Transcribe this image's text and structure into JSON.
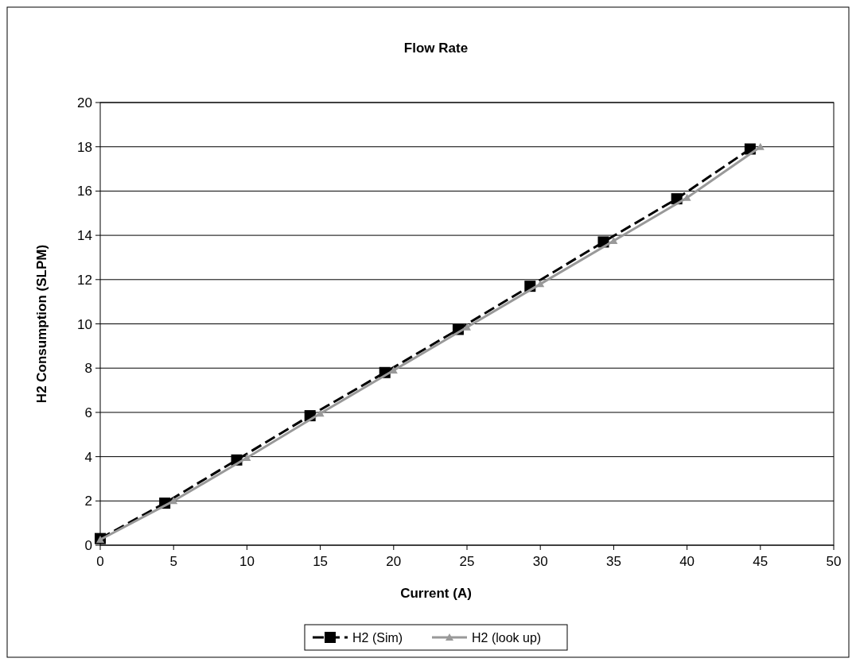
{
  "chart_data": {
    "type": "line",
    "title": "Flow Rate",
    "xlabel": "Current (A)",
    "ylabel": "H2 Consumption (SLPM)",
    "xlim": [
      0,
      50
    ],
    "xticks": [
      0,
      5,
      10,
      15,
      20,
      25,
      30,
      35,
      40,
      45,
      50
    ],
    "ylim": [
      0,
      20
    ],
    "yticks": [
      0,
      2,
      4,
      6,
      8,
      10,
      12,
      14,
      16,
      18,
      20
    ],
    "grid": "y",
    "legend": "bottom",
    "series": [
      {
        "name": "H2 (Sim)",
        "color": "#000000",
        "marker": "square",
        "line_style": "dashed",
        "x": [
          0,
          4.4,
          9.3,
          14.3,
          19.4,
          24.4,
          29.3,
          34.3,
          39.3,
          44.3
        ],
        "values": [
          0.3,
          1.9,
          3.85,
          5.85,
          7.8,
          9.75,
          11.7,
          13.7,
          15.65,
          17.9
        ]
      },
      {
        "name": "H2 (look up)",
        "color": "#999999",
        "marker": "triangle",
        "line_style": "solid",
        "x": [
          0,
          5,
          10,
          15,
          20,
          25,
          30,
          35,
          40,
          45
        ],
        "values": [
          0.25,
          2,
          3.95,
          5.95,
          7.9,
          9.85,
          11.8,
          13.75,
          15.7,
          18
        ]
      }
    ]
  }
}
